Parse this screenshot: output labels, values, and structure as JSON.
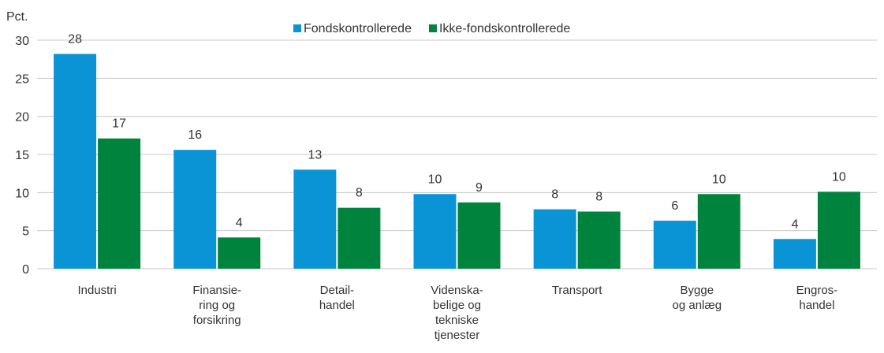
{
  "chart_data": {
    "type": "bar",
    "y_unit_label": "Pct.",
    "categories": [
      "Industri",
      "Finansie-\nring og\nforsikring",
      "Detail-\nhandel",
      "Videnska-\nbelige og\ntekniske\ntjenester",
      "Transport",
      "Bygge\nog anlæg",
      "Engros-\nhandel"
    ],
    "series": [
      {
        "name": "Fondskontrollerede",
        "color": "#0a94d6",
        "values": [
          28.2,
          15.6,
          13.0,
          9.8,
          7.8,
          6.3,
          3.9
        ],
        "value_labels": [
          "28",
          "16",
          "13",
          "10",
          "8",
          "6",
          "4"
        ]
      },
      {
        "name": "Ikke-fondskontrollerede",
        "color": "#00843d",
        "values": [
          17.1,
          4.1,
          8.0,
          8.7,
          7.5,
          9.8,
          10.1
        ],
        "value_labels": [
          "17",
          "4",
          "8",
          "9",
          "8",
          "10",
          "10"
        ]
      }
    ],
    "ylim": [
      0,
      30
    ],
    "yticks": [
      0,
      5,
      10,
      15,
      20,
      25,
      30
    ],
    "grid": true,
    "legend": "top"
  }
}
